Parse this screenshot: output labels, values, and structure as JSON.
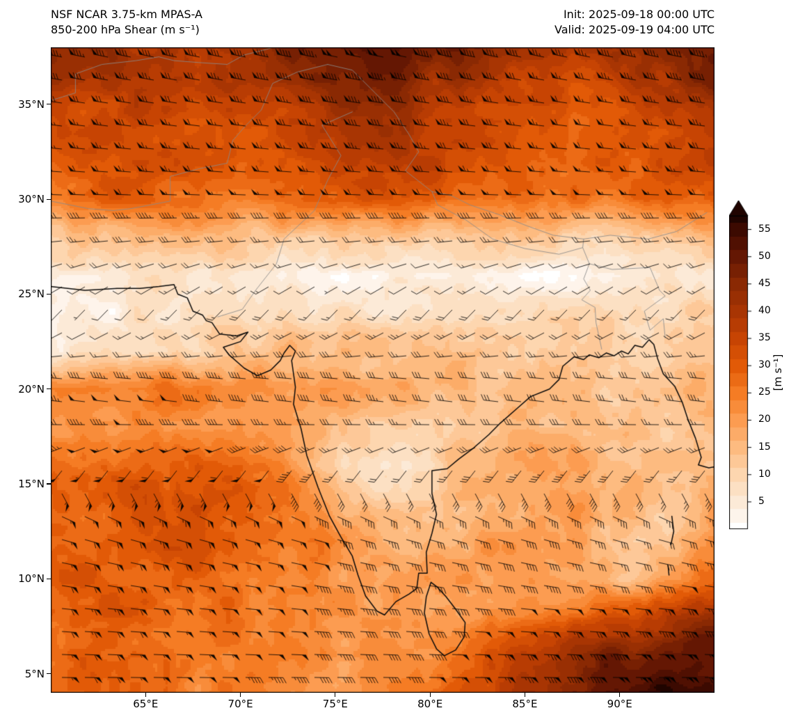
{
  "chart_data": {
    "type": "heatmap",
    "title": "NSF NCAR 3.75-km MPAS-A",
    "subtitle": "850-200 hPa Shear (m s⁻¹)",
    "init_label": "Init: 2025-09-18 00:00 UTC",
    "valid_label": "Valid: 2025-09-19 04:00 UTC",
    "projection": "lat-lon",
    "extent": {
      "lon": [
        60,
        95
      ],
      "lat": [
        4,
        38
      ]
    },
    "xaxis": {
      "tick_values": [
        65,
        70,
        75,
        80,
        85,
        90
      ],
      "tick_labels": [
        "65°E",
        "70°E",
        "75°E",
        "80°E",
        "85°E",
        "90°E"
      ]
    },
    "yaxis": {
      "tick_values": [
        5,
        10,
        15,
        20,
        25,
        30,
        35
      ],
      "tick_labels": [
        "5°N",
        "10°N",
        "15°N",
        "20°N",
        "25°N",
        "30°N",
        "35°N"
      ]
    },
    "colorbar": {
      "label": "[m s⁻¹]",
      "tick_values": [
        5,
        10,
        15,
        20,
        25,
        30,
        35,
        40,
        45,
        50,
        55
      ],
      "range": [
        0,
        57.5
      ],
      "extend": "max",
      "quantize_step": 2.5
    },
    "colormap": [
      {
        "v": 0.0,
        "c": "#ffffff"
      },
      {
        "v": 5.0,
        "c": "#fcead7"
      },
      {
        "v": 10.0,
        "c": "#fdd6af"
      },
      {
        "v": 15.0,
        "c": "#fdbb80"
      },
      {
        "v": 20.0,
        "c": "#fc9c51"
      },
      {
        "v": 25.0,
        "c": "#f57c24"
      },
      {
        "v": 30.0,
        "c": "#e25a07"
      },
      {
        "v": 35.0,
        "c": "#c74403"
      },
      {
        "v": 40.0,
        "c": "#a83503"
      },
      {
        "v": 45.0,
        "c": "#8a2903"
      },
      {
        "v": 50.0,
        "c": "#641703"
      },
      {
        "v": 55.0,
        "c": "#3c0a01"
      },
      {
        "v": 57.5,
        "c": "#200400"
      }
    ],
    "shear_field": {
      "units": "m s⁻¹",
      "lons": [
        60,
        62.5,
        65,
        67.5,
        70,
        72.5,
        75,
        77.5,
        80,
        82.5,
        85,
        87.5,
        90,
        92.5,
        95
      ],
      "lats": [
        38,
        36,
        34,
        32,
        30,
        28,
        26,
        24,
        22,
        20,
        18,
        16,
        14,
        12,
        10,
        8,
        6,
        4
      ],
      "values": [
        [
          45,
          42,
          40,
          38,
          42,
          46,
          50,
          52,
          50,
          46,
          40,
          38,
          42,
          46,
          48
        ],
        [
          40,
          38,
          36,
          36,
          38,
          42,
          46,
          46,
          42,
          38,
          34,
          32,
          36,
          40,
          45
        ],
        [
          32,
          33,
          34,
          31,
          32,
          35,
          38,
          40,
          38,
          35,
          32,
          30,
          30,
          33,
          38
        ],
        [
          30,
          32,
          34,
          32,
          30,
          32,
          34,
          36,
          36,
          34,
          32,
          30,
          30,
          32,
          34
        ],
        [
          26,
          28,
          30,
          28,
          26,
          28,
          30,
          30,
          30,
          28,
          26,
          25,
          26,
          28,
          30
        ],
        [
          10,
          14,
          18,
          16,
          13,
          12,
          12,
          12,
          13,
          12,
          12,
          10,
          10,
          12,
          16
        ],
        [
          5,
          5,
          7,
          7,
          6,
          4,
          2,
          2,
          4,
          4,
          2,
          2,
          2,
          5,
          8
        ],
        [
          4,
          4,
          6,
          8,
          10,
          10,
          8,
          8,
          10,
          10,
          9,
          8,
          8,
          9,
          10
        ],
        [
          5,
          6,
          8,
          10,
          14,
          16,
          15,
          14,
          14,
          13,
          12,
          11,
          10,
          10,
          12
        ],
        [
          24,
          26,
          27,
          25,
          24,
          22,
          20,
          18,
          16,
          15,
          15,
          14,
          14,
          15,
          18
        ],
        [
          20,
          22,
          24,
          22,
          20,
          18,
          15,
          12,
          12,
          14,
          15,
          14,
          13,
          12,
          14
        ],
        [
          25,
          28,
          30,
          30,
          28,
          22,
          12,
          8,
          10,
          15,
          18,
          18,
          16,
          12,
          15
        ],
        [
          28,
          30,
          32,
          32,
          30,
          25,
          18,
          12,
          12,
          16,
          18,
          20,
          18,
          12,
          20
        ],
        [
          28,
          30,
          32,
          30,
          28,
          26,
          22,
          18,
          16,
          18,
          20,
          18,
          14,
          10,
          22
        ],
        [
          30,
          30,
          30,
          28,
          26,
          25,
          22,
          20,
          18,
          20,
          22,
          18,
          12,
          18,
          28
        ],
        [
          30,
          32,
          30,
          28,
          26,
          25,
          22,
          20,
          20,
          22,
          25,
          28,
          32,
          38,
          42
        ],
        [
          28,
          30,
          28,
          26,
          25,
          24,
          22,
          20,
          22,
          28,
          35,
          42,
          48,
          50,
          52
        ],
        [
          28,
          30,
          28,
          25,
          23,
          22,
          20,
          22,
          25,
          32,
          40,
          48,
          52,
          55,
          55
        ]
      ]
    },
    "wind_barbs": {
      "units": "m s⁻¹",
      "speed_source": "shear_field",
      "calm_threshold": 2.5,
      "half_barb": 2.5,
      "full_barb": 5,
      "pennant": 25,
      "direction_profile_by_lat": [
        [
          38,
          282
        ],
        [
          33,
          276
        ],
        [
          30,
          272
        ],
        [
          28,
          266
        ],
        [
          26,
          248
        ],
        [
          24,
          222
        ],
        [
          22,
          262
        ],
        [
          20,
          280
        ],
        [
          18,
          270
        ],
        [
          16,
          232
        ],
        [
          15,
          185
        ],
        [
          14,
          120
        ],
        [
          12,
          105
        ],
        [
          10,
          100
        ],
        [
          8,
          95
        ],
        [
          4,
          90
        ]
      ]
    }
  },
  "map_layers": {
    "coastlines": [
      [
        [
          60,
          25.4
        ],
        [
          61.8,
          25.2
        ],
        [
          63.5,
          25.3
        ],
        [
          64.7,
          25.3
        ],
        [
          65.7,
          25.4
        ],
        [
          66.5,
          25.5
        ],
        [
          66.7,
          25.0
        ],
        [
          67.2,
          24.8
        ],
        [
          67.5,
          24.1
        ],
        [
          68.0,
          23.9
        ],
        [
          68.2,
          23.6
        ],
        [
          68.5,
          23.5
        ],
        [
          68.9,
          22.9
        ],
        [
          69.8,
          22.8
        ],
        [
          70.4,
          23.0
        ],
        [
          70.0,
          22.5
        ],
        [
          69.1,
          22.2
        ],
        [
          69.4,
          21.8
        ],
        [
          70.2,
          21.1
        ],
        [
          70.9,
          20.7
        ],
        [
          71.6,
          21.0
        ],
        [
          72.1,
          21.5
        ],
        [
          72.3,
          21.9
        ],
        [
          72.6,
          22.3
        ],
        [
          72.9,
          22.0
        ],
        [
          72.7,
          21.5
        ],
        [
          72.8,
          20.8
        ],
        [
          72.9,
          20.1
        ],
        [
          72.8,
          19.2
        ],
        [
          73.2,
          17.9
        ],
        [
          73.5,
          16.5
        ],
        [
          74.1,
          14.8
        ],
        [
          74.7,
          13.3
        ],
        [
          75.3,
          12.2
        ],
        [
          75.9,
          11.2
        ],
        [
          76.2,
          10.2
        ],
        [
          76.6,
          9.1
        ],
        [
          77.2,
          8.3
        ],
        [
          77.6,
          8.1
        ],
        [
          78.2,
          8.8
        ],
        [
          78.9,
          9.2
        ],
        [
          79.3,
          9.5
        ],
        [
          79.4,
          10.3
        ],
        [
          79.85,
          10.3
        ],
        [
          79.8,
          11.4
        ],
        [
          80.1,
          12.4
        ],
        [
          80.34,
          13.4
        ],
        [
          80.1,
          14.5
        ],
        [
          80.1,
          15.7
        ],
        [
          80.9,
          15.8
        ],
        [
          81.5,
          16.3
        ],
        [
          82.3,
          16.9
        ],
        [
          83.1,
          17.6
        ],
        [
          83.7,
          18.2
        ],
        [
          84.5,
          18.9
        ],
        [
          85.3,
          19.6
        ],
        [
          86.3,
          20.0
        ],
        [
          86.8,
          20.5
        ],
        [
          87.0,
          21.2
        ],
        [
          87.6,
          21.7
        ],
        [
          88.1,
          21.55
        ],
        [
          88.4,
          21.8
        ],
        [
          88.9,
          21.65
        ],
        [
          89.3,
          21.9
        ],
        [
          89.7,
          21.75
        ],
        [
          90.1,
          22.0
        ],
        [
          90.45,
          21.85
        ],
        [
          90.8,
          22.3
        ],
        [
          91.2,
          22.2
        ],
        [
          91.55,
          22.6
        ],
        [
          91.8,
          22.35
        ],
        [
          92.0,
          21.6
        ],
        [
          92.3,
          20.8
        ],
        [
          92.9,
          20.15
        ],
        [
          93.3,
          19.3
        ],
        [
          93.6,
          18.4
        ],
        [
          94.0,
          17.4
        ],
        [
          94.3,
          16.4
        ],
        [
          94.15,
          16.0
        ],
        [
          94.7,
          15.85
        ],
        [
          95,
          15.9
        ]
      ],
      [
        [
          80.05,
          9.82
        ],
        [
          79.8,
          9.05
        ],
        [
          79.7,
          8.2
        ],
        [
          79.95,
          7.1
        ],
        [
          80.35,
          6.3
        ],
        [
          80.75,
          5.95
        ],
        [
          81.35,
          6.25
        ],
        [
          81.8,
          6.95
        ],
        [
          81.85,
          7.7
        ],
        [
          81.35,
          8.4
        ],
        [
          80.85,
          9.05
        ],
        [
          80.4,
          9.55
        ],
        [
          80.05,
          9.82
        ]
      ],
      [
        [
          92.75,
          13.3
        ],
        [
          92.85,
          12.5
        ],
        [
          92.7,
          11.8
        ]
      ],
      [
        [
          92.55,
          10.7
        ],
        [
          92.6,
          10.2
        ]
      ]
    ],
    "borders": [
      [
        [
          60,
          29.9
        ],
        [
          62,
          29.5
        ],
        [
          63.3,
          29.4
        ],
        [
          64.2,
          29.5
        ],
        [
          66.3,
          29.9
        ],
        [
          66.3,
          31.2
        ],
        [
          67.8,
          31.6
        ],
        [
          69.3,
          31.9
        ],
        [
          69.6,
          33.1
        ],
        [
          70.3,
          33.9
        ],
        [
          71.1,
          34.7
        ],
        [
          71.7,
          36.1
        ],
        [
          73.0,
          36.7
        ],
        [
          74.6,
          37.1
        ]
      ],
      [
        [
          74.6,
          37.1
        ],
        [
          75.9,
          36.8
        ],
        [
          77.1,
          35.6
        ],
        [
          78.1,
          34.6
        ],
        [
          78.9,
          33.4
        ],
        [
          79.4,
          32.5
        ],
        [
          78.7,
          31.5
        ],
        [
          80.1,
          30.4
        ],
        [
          81.1,
          30.2
        ],
        [
          82.1,
          29.7
        ],
        [
          83.6,
          29.2
        ],
        [
          85.1,
          28.6
        ],
        [
          86.5,
          28.1
        ],
        [
          88.1,
          27.9
        ],
        [
          89.5,
          28.1
        ],
        [
          91.5,
          27.9
        ],
        [
          93.0,
          28.3
        ],
        [
          94.6,
          29.3
        ]
      ],
      [
        [
          68.8,
          23.8
        ],
        [
          70.1,
          24.2
        ],
        [
          70.8,
          25.2
        ],
        [
          71.9,
          26.6
        ],
        [
          72.3,
          27.9
        ],
        [
          73.9,
          29.4
        ],
        [
          74.6,
          31.0
        ],
        [
          75.3,
          32.3
        ],
        [
          74.3,
          33.9
        ],
        [
          75.9,
          34.6
        ]
      ],
      [
        [
          80.1,
          30.4
        ],
        [
          80.4,
          29.7
        ],
        [
          81.9,
          28.9
        ],
        [
          83.3,
          27.9
        ],
        [
          85.0,
          27.4
        ],
        [
          86.8,
          27.1
        ],
        [
          88.05,
          27.45
        ],
        [
          88.1,
          27.9
        ]
      ],
      [
        [
          88.05,
          27.45
        ],
        [
          88.4,
          26.6
        ],
        [
          88.1,
          25.8
        ],
        [
          88.45,
          25.2
        ],
        [
          88.0,
          24.7
        ],
        [
          88.7,
          24.3
        ],
        [
          88.75,
          23.5
        ],
        [
          89.05,
          22.1
        ]
      ],
      [
        [
          88.4,
          26.6
        ],
        [
          89.6,
          26.3
        ],
        [
          91.6,
          26.4
        ],
        [
          92.1,
          25.2
        ],
        [
          92.4,
          24.9
        ],
        [
          91.3,
          24.1
        ],
        [
          91.6,
          23.1
        ],
        [
          92.3,
          23.7
        ],
        [
          92.4,
          22.7
        ]
      ],
      [
        [
          60,
          35.2
        ],
        [
          61.3,
          35.6
        ],
        [
          61.3,
          36.6
        ],
        [
          62.7,
          37.1
        ],
        [
          64.5,
          37.3
        ],
        [
          65.7,
          37.5
        ],
        [
          66.5,
          37.3
        ],
        [
          67.8,
          37.2
        ],
        [
          69.3,
          37.1
        ],
        [
          70.2,
          37.6
        ],
        [
          71.4,
          37.9
        ],
        [
          71.7,
          38
        ]
      ]
    ]
  }
}
